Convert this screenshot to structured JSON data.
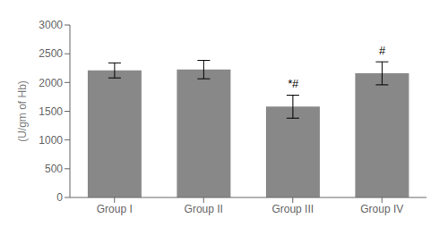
{
  "chart_data": {
    "type": "bar",
    "categories": [
      "Group I",
      "Group II",
      "Group III",
      "Group IV"
    ],
    "values": [
      2210,
      2225,
      1580,
      2160
    ],
    "errors": [
      130,
      160,
      200,
      200
    ],
    "color": "#888888",
    "ylabel": "(U/gm of Hb)",
    "ylim": [
      0,
      3000
    ],
    "yticks": [
      0,
      500,
      1000,
      1500,
      2000,
      2500,
      3000
    ],
    "annotations": [
      {
        "category": "Group III",
        "text": "*#"
      },
      {
        "category": "Group IV",
        "text": "#"
      }
    ],
    "grid": false
  }
}
